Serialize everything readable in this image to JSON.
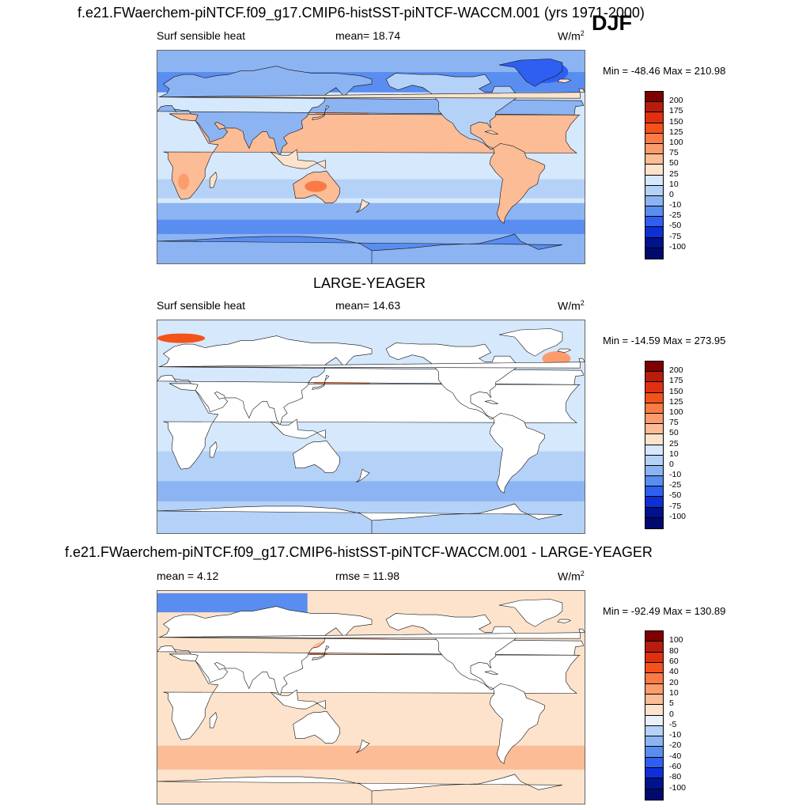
{
  "season": "DJF",
  "panels": [
    {
      "title": "f.e21.FWaerchem-piNTCF.f09_g17.CMIP6-histSST-piNTCF-WACCM.001 (yrs 1971-2000)",
      "left_label": "Surf sensible heat",
      "center_label": "mean=  18.74",
      "unit": "W/m",
      "unit_sup": "2",
      "minmax": "Min = -48.46 Max = 210.98",
      "colorbar": {
        "labels": [
          "200",
          "175",
          "150",
          "125",
          "100",
          "75",
          "50",
          "25",
          "10",
          "0",
          "-10",
          "-25",
          "-50",
          "-75",
          "-100"
        ],
        "colors": [
          "#7f0000",
          "#b71c0c",
          "#e0300f",
          "#f4521b",
          "#fb7a45",
          "#fc9b6c",
          "#fcbc96",
          "#fde3cc",
          "#d6e8fb",
          "#b4d2f7",
          "#8cb4f2",
          "#5a8df0",
          "#2e5ff0",
          "#0f2fd6",
          "#00128c",
          "#000a6e"
        ]
      },
      "land_masked": false
    },
    {
      "title": "LARGE-YEAGER",
      "left_label": "Surf sensible heat",
      "center_label": "mean=  14.63",
      "unit": "W/m",
      "unit_sup": "2",
      "minmax": "Min = -14.59 Max = 273.95",
      "colorbar": {
        "labels": [
          "200",
          "175",
          "150",
          "125",
          "100",
          "75",
          "50",
          "25",
          "10",
          "0",
          "-10",
          "-25",
          "-50",
          "-75",
          "-100"
        ],
        "colors": [
          "#7f0000",
          "#b71c0c",
          "#e0300f",
          "#f4521b",
          "#fb7a45",
          "#fc9b6c",
          "#fcbc96",
          "#fde3cc",
          "#d6e8fb",
          "#b4d2f7",
          "#8cb4f2",
          "#5a8df0",
          "#2e5ff0",
          "#0f2fd6",
          "#00128c",
          "#000a6e"
        ]
      },
      "land_masked": true
    },
    {
      "title": "f.e21.FWaerchem-piNTCF.f09_g17.CMIP6-histSST-piNTCF-WACCM.001 - LARGE-YEAGER",
      "left_label": "mean =   4.12",
      "center_label": "rmse =  11.98",
      "unit": "W/m",
      "unit_sup": "2",
      "minmax": "Min = -92.49 Max = 130.89",
      "colorbar": {
        "labels": [
          "100",
          "80",
          "60",
          "40",
          "20",
          "10",
          "5",
          "0",
          "-5",
          "-10",
          "-20",
          "-40",
          "-60",
          "-80",
          "-100"
        ],
        "colors": [
          "#7f0000",
          "#b71c0c",
          "#e0300f",
          "#f4521b",
          "#fb7a45",
          "#fc9b6c",
          "#fcbc96",
          "#fde3cc",
          "#e8f0fc",
          "#b4d2f7",
          "#8cb4f2",
          "#5a8df0",
          "#2e5ff0",
          "#0f2fd6",
          "#00128c",
          "#000a6e"
        ]
      },
      "land_masked": true
    }
  ]
}
